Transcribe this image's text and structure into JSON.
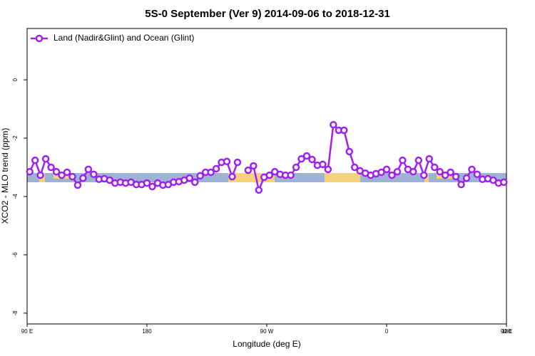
{
  "chart_data": {
    "type": "line",
    "title": "5S-0 September (Ver 9)   2014-09-06 to 2018-12-31",
    "x_label": "Longitude (deg E)",
    "y_label": "XCO2 - MLO trend (ppm)",
    "x": [
      92,
      96,
      100,
      104,
      108,
      112,
      116,
      120,
      124,
      128,
      132,
      136,
      140,
      144,
      148,
      152,
      156,
      160,
      164,
      168,
      172,
      176,
      180,
      184,
      188,
      192,
      196,
      200,
      204,
      208,
      212,
      216,
      220,
      224,
      228,
      232,
      236,
      240,
      244,
      248,
      252,
      256,
      260,
      264,
      268,
      272,
      276,
      280,
      284,
      288,
      292,
      296,
      300,
      304,
      308,
      312,
      316,
      320,
      324,
      328,
      332,
      336,
      340,
      344,
      348,
      352,
      356,
      360,
      364,
      368,
      372,
      376,
      380,
      384,
      388,
      392,
      396,
      400,
      404,
      408,
      412,
      416,
      420,
      424,
      428,
      432,
      436,
      440,
      444,
      448
    ],
    "series": [
      {
        "name": "Land (Nadir&Glint) and Ocean (Glint)",
        "color": "#a020f0",
        "values": [
          -3.15,
          -2.76,
          -3.27,
          -2.71,
          -3.0,
          -3.15,
          -3.27,
          -3.17,
          -3.32,
          -3.61,
          -3.37,
          -3.07,
          -3.24,
          -3.41,
          -3.39,
          -3.44,
          -3.54,
          -3.51,
          -3.54,
          -3.51,
          -3.59,
          -3.59,
          -3.54,
          -3.66,
          -3.54,
          -3.61,
          -3.59,
          -3.51,
          -3.49,
          -3.44,
          -3.37,
          -3.51,
          -3.29,
          -3.17,
          -3.17,
          -3.05,
          -2.83,
          -2.8,
          -3.32,
          -2.83,
          null,
          -3.1,
          -2.95,
          -3.78,
          -3.34,
          -3.27,
          -3.15,
          -3.24,
          -3.27,
          -3.27,
          -3.0,
          -2.71,
          -2.61,
          -2.73,
          -2.93,
          -2.9,
          -3.07,
          -1.54,
          -1.73,
          -1.73,
          -2.46,
          -3.0,
          -3.12,
          -3.2,
          -3.27,
          -3.22,
          -3.17,
          -3.07,
          -3.27,
          -3.15,
          -2.76,
          -3.07,
          -3.15,
          -2.76,
          -3.27,
          -2.71,
          -3.0,
          -3.15,
          -3.27,
          -3.17,
          -3.32,
          -3.59,
          -3.37,
          -3.07,
          -3.24,
          -3.41,
          -3.39,
          -3.44,
          -3.54,
          -3.51
        ]
      }
    ],
    "xlim": [
      90,
      450
    ],
    "xticks": [
      {
        "value": 90,
        "label": "90 E"
      },
      180,
      {
        "value": 270,
        "label": "90 W"
      },
      {
        "value": 360,
        "label": "0"
      },
      {
        "value": 450,
        "label": "90 E"
      },
      {
        "value": 540,
        "label": "180"
      }
    ],
    "ylim": [
      -8.37,
      1.76
    ],
    "yticks": [
      0,
      -2,
      -4,
      -6,
      -8
    ],
    "legend": "top-left"
  }
}
